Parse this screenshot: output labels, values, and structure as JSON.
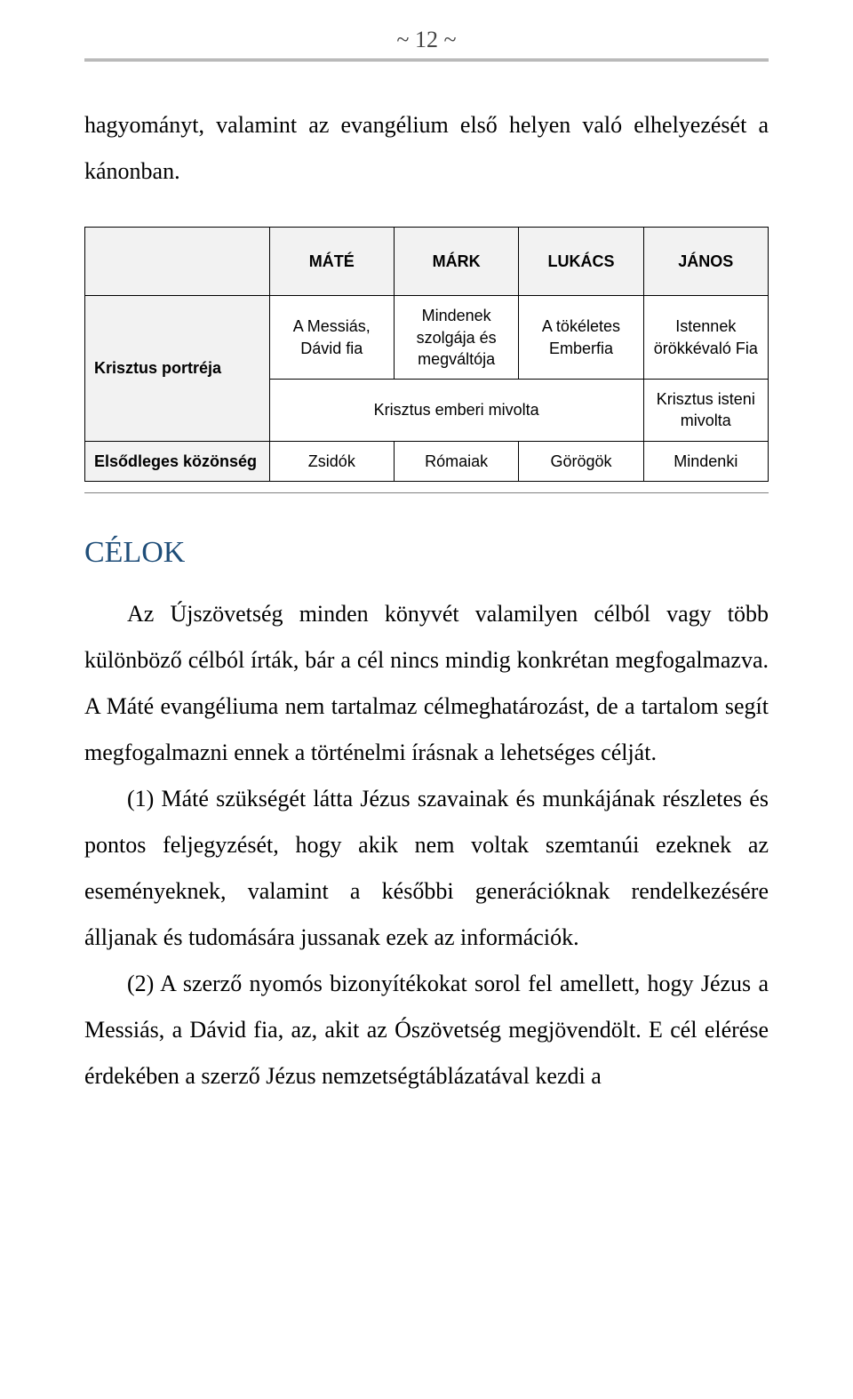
{
  "page_number": "~ 12 ~",
  "intro_paragraph": "hagyományt, valamint az evangélium első helyen való elhelyezését a kánonban.",
  "table": {
    "col_headers": [
      "MÁTÉ",
      "MÁRK",
      "LUKÁCS",
      "JÁNOS"
    ],
    "row1_label": "Krisztus portréja",
    "row1_cells": [
      "A Messiás, Dávid fia",
      "Mindenek szolgája és megváltója",
      "A tökéletes Emberfia",
      "Istennek örökkévaló Fia"
    ],
    "row2_span_text": "Krisztus emberi mivolta",
    "row2_last": "Krisztus isteni mivolta",
    "row3_label": "Elsődleges közönség",
    "row3_cells": [
      "Zsidók",
      "Rómaiak",
      "Görögök",
      "Mindenki"
    ]
  },
  "section_title": "CÉLOK",
  "body": {
    "p1": "Az Újszövetség minden könyvét valamilyen célból vagy több különböző célból írták, bár a cél nincs mindig konkrétan megfogalmazva. A Máté evangéliuma nem tartalmaz célmeghatározást, de a tartalom segít megfogalmazni ennek a történelmi írásnak a lehetséges célját.",
    "p2": "(1) Máté szükségét látta Jézus szavainak és munkájának részletes és pontos feljegyzését, hogy akik nem voltak szemtanúi ezeknek az eseményeknek, valamint a későbbi generációknak rendelkezésére álljanak és tudomására jussanak ezek az információk.",
    "p3": "(2) A szerző nyomós bizonyítékokat sorol fel amellett, hogy Jézus a Messiás, a Dávid fia, az, akit az Ószövetség megjövendölt. E cél elérése érdekében a szerző Jézus nemzetségtáblázatával kezdi a"
  },
  "colors": {
    "heading": "#1f4e79",
    "text": "#000000",
    "rule": "#808080",
    "table_header_bg": "#f2f2f2",
    "table_border": "#000000",
    "background": "#ffffff"
  }
}
